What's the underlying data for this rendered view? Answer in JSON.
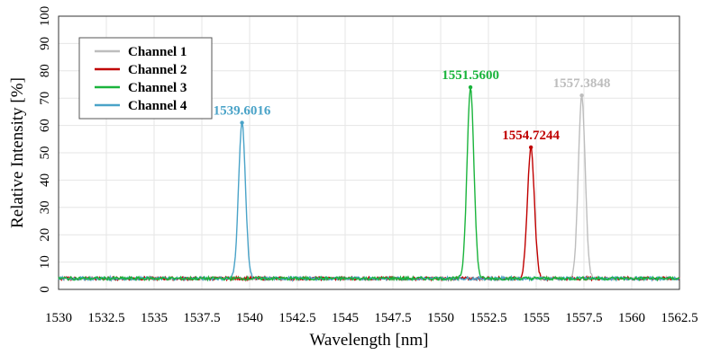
{
  "chart_data": {
    "type": "line",
    "xlabel": "Wavelength [nm]",
    "ylabel": "Relative Intensity [%]",
    "xlim": [
      1530,
      1562.5
    ],
    "ylim": [
      0,
      100
    ],
    "x_ticks": [
      1530,
      1532.5,
      1535,
      1537.5,
      1540,
      1542.5,
      1545,
      1547.5,
      1550,
      1552.5,
      1555,
      1557.5,
      1560,
      1562.5
    ],
    "x_tick_labels": [
      "1530",
      "1532.5",
      "1535",
      "1537.5",
      "1540",
      "1542.5",
      "1545",
      "1547.5",
      "1550",
      "1552.5",
      "1555",
      "1557.5",
      "1560",
      "1562.5"
    ],
    "y_ticks": [
      0,
      10,
      20,
      30,
      40,
      50,
      60,
      70,
      80,
      90,
      100
    ],
    "y_tick_labels": [
      "0",
      "10",
      "20",
      "30",
      "40",
      "50",
      "60",
      "70",
      "80",
      "90",
      "100"
    ],
    "grid": true,
    "legend_position": "top-left",
    "baseline": 4,
    "series": [
      {
        "name": "Channel 1",
        "color": "#bdbdbd",
        "peak_x": 1557.3848,
        "peak_y": 71,
        "peak_label": "1557.3848"
      },
      {
        "name": "Channel 2",
        "color": "#c00000",
        "peak_x": 1554.7244,
        "peak_y": 52,
        "peak_label": "1554.7244"
      },
      {
        "name": "Channel 3",
        "color": "#1ab43c",
        "peak_x": 1551.56,
        "peak_y": 74,
        "peak_label": "1551.5600"
      },
      {
        "name": "Channel 4",
        "color": "#4aa3c8",
        "peak_x": 1539.6016,
        "peak_y": 61,
        "peak_label": "1539.6016"
      }
    ]
  }
}
